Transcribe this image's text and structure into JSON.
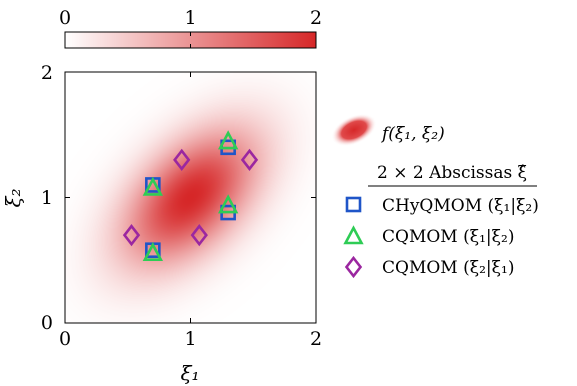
{
  "chart_data": {
    "type": "scatter",
    "title": "",
    "xlabel": "ξ₁",
    "ylabel": "ξ₂",
    "xlim": [
      0,
      2
    ],
    "ylim": [
      0,
      2
    ],
    "x_ticks": [
      "0",
      "1",
      "2"
    ],
    "y_ticks": [
      "0",
      "1",
      "2"
    ],
    "grid": false,
    "legend_position": "right",
    "colorbar": {
      "ticks": [
        "0",
        "1",
        "2"
      ],
      "range": [
        0,
        2
      ],
      "color_low": "#ffffff",
      "color_high": "#d62728"
    },
    "density": {
      "name": "f(ξ₁, ξ₂)",
      "color": "#d62728",
      "peak": 2,
      "mean": [
        1.0,
        1.0
      ],
      "sigma": [
        0.37,
        0.37
      ],
      "correlation": 0.5
    },
    "legend_title": "2 × 2 Abscissas ξ̂",
    "series": [
      {
        "name": "CHyQMOM (ξ₁|ξ₂)",
        "marker": "square",
        "color": "#1f55c8",
        "points": [
          [
            0.7,
            1.1
          ],
          [
            0.7,
            0.58
          ],
          [
            1.3,
            1.4
          ],
          [
            1.3,
            0.88
          ]
        ]
      },
      {
        "name": "CQMOM (ξ₁|ξ₂)",
        "marker": "triangle",
        "color": "#2ecc55",
        "points": [
          [
            0.7,
            1.08
          ],
          [
            0.7,
            0.56
          ],
          [
            1.3,
            1.45
          ],
          [
            1.3,
            0.94
          ]
        ]
      },
      {
        "name": "CQMOM (ξ₂|ξ₁)",
        "marker": "diamond",
        "color": "#9b27a0",
        "points": [
          [
            0.53,
            0.7
          ],
          [
            0.93,
            1.3
          ],
          [
            1.07,
            0.7
          ],
          [
            1.47,
            1.3
          ]
        ]
      }
    ]
  }
}
